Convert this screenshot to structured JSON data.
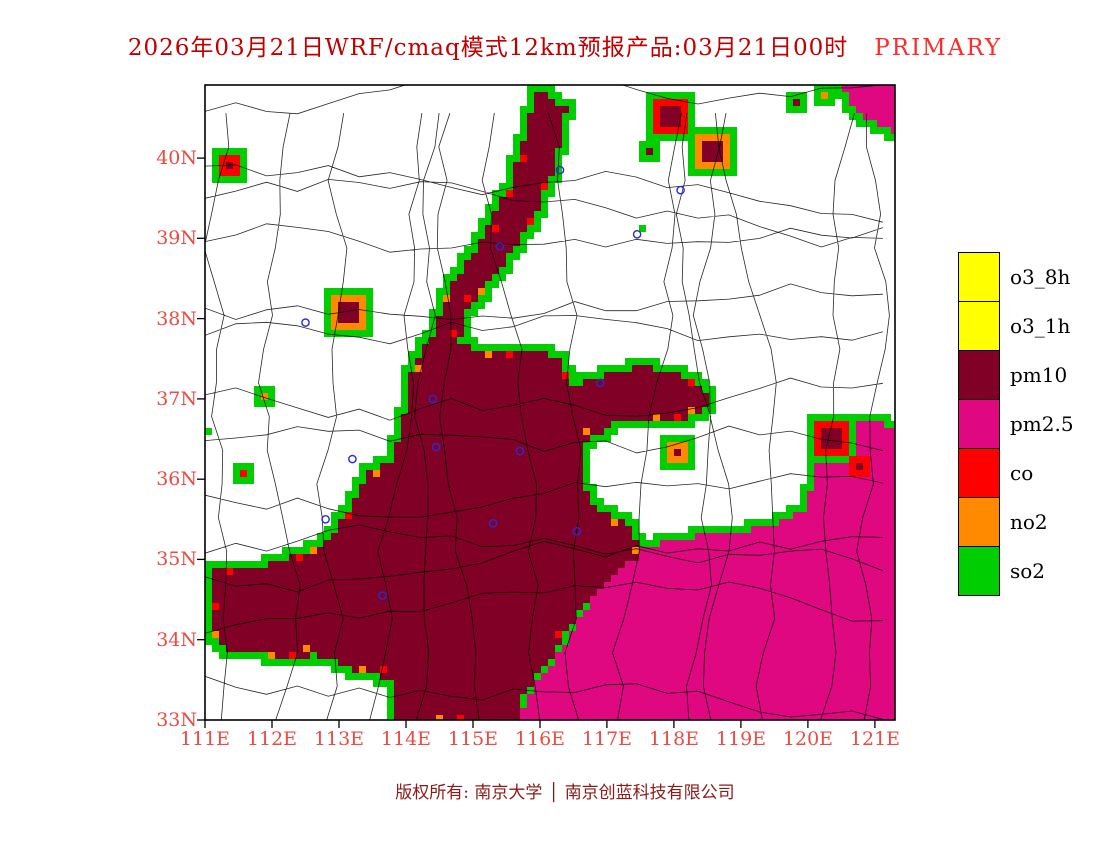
{
  "title": {
    "main": "2026年03月21日WRF/cmaq模式12km预报产品:03月21日00时",
    "highlight": "PRIMARY"
  },
  "footer": {
    "owner": "版权所有: 南京大学",
    "divider": "│",
    "company": "南京创蓝科技有限公司"
  },
  "axes": {
    "lat_labels": [
      "40N",
      "39N",
      "38N",
      "37N",
      "36N",
      "35N",
      "34N",
      "33N"
    ],
    "lon_labels": [
      "111E",
      "112E",
      "113E",
      "114E",
      "115E",
      "116E",
      "117E",
      "118E",
      "119E",
      "120E",
      "121E"
    ]
  },
  "legend": {
    "entries": [
      {
        "label": "o3_8h",
        "color": "#FFFF00"
      },
      {
        "label": "o3_1h",
        "color": "#FFFF00"
      },
      {
        "label": "pm10",
        "color": "#800026"
      },
      {
        "label": "pm2.5",
        "color": "#E00880"
      },
      {
        "label": "co",
        "color": "#FF0000"
      },
      {
        "label": "no2",
        "color": "#FF8A00"
      },
      {
        "label": "so2",
        "color": "#00CE00"
      }
    ]
  },
  "chart_data": {
    "type": "map",
    "title": "2026年03月21日WRF/cmaq模式12km预报产品:03月21日00时 PRIMARY",
    "projection": {
      "lon_range": [
        111,
        121.3
      ],
      "lat_range": [
        33,
        40.91
      ]
    },
    "lon_ticks": [
      111,
      112,
      113,
      114,
      115,
      116,
      117,
      118,
      119,
      120,
      121
    ],
    "lat_ticks": [
      33,
      34,
      35,
      36,
      37,
      38,
      39,
      40
    ],
    "palette": {
      "pm10": "#800026",
      "pm2.5": "#E00880",
      "co": "#FF0000",
      "no2": "#FF8A00",
      "so2": "#00CE00",
      "o3_8h": "#FFFF00",
      "o3_1h": "#FFFF00"
    },
    "marker_color": "#2A2AD4",
    "regions": [
      {
        "pollutant": "pm2.5",
        "name": "southeast-pm25-zone",
        "points": [
          [
            115.65,
            33.0
          ],
          [
            115.85,
            33.35
          ],
          [
            116.3,
            33.85
          ],
          [
            116.7,
            34.4
          ],
          [
            117.1,
            34.85
          ],
          [
            117.55,
            35.15
          ],
          [
            118.2,
            35.28
          ],
          [
            118.9,
            35.33
          ],
          [
            119.5,
            35.45
          ],
          [
            119.95,
            35.6
          ],
          [
            120.1,
            36.1
          ],
          [
            120.35,
            36.55
          ],
          [
            120.8,
            36.75
          ],
          [
            121.3,
            36.65
          ],
          [
            121.3,
            33.0
          ]
        ]
      },
      {
        "pollutant": "pm2.5",
        "name": "northeast-corner-pm25",
        "points": [
          [
            120.55,
            40.91
          ],
          [
            121.3,
            40.91
          ],
          [
            121.3,
            40.3
          ],
          [
            120.95,
            40.45
          ],
          [
            120.6,
            40.7
          ]
        ]
      },
      {
        "pollutant": "pm10",
        "name": "central-pm10-zone",
        "points": [
          [
            116.05,
            40.85
          ],
          [
            116.4,
            40.6
          ],
          [
            116.25,
            40.0
          ],
          [
            115.95,
            39.3
          ],
          [
            115.35,
            38.55
          ],
          [
            114.9,
            38.1
          ],
          [
            114.8,
            37.7
          ],
          [
            115.3,
            37.55
          ],
          [
            115.9,
            37.6
          ],
          [
            116.3,
            37.5
          ],
          [
            116.45,
            37.15
          ],
          [
            116.95,
            37.3
          ],
          [
            117.55,
            37.4
          ],
          [
            118.3,
            37.25
          ],
          [
            118.58,
            36.95
          ],
          [
            118.05,
            36.7
          ],
          [
            117.25,
            36.75
          ],
          [
            116.7,
            36.5
          ],
          [
            116.6,
            36.0
          ],
          [
            116.85,
            35.6
          ],
          [
            117.35,
            35.45
          ],
          [
            117.5,
            35.05
          ],
          [
            117.0,
            34.75
          ],
          [
            116.5,
            34.25
          ],
          [
            116.1,
            33.7
          ],
          [
            115.75,
            33.3
          ],
          [
            115.65,
            33.0
          ],
          [
            113.85,
            33.0
          ],
          [
            113.8,
            33.5
          ],
          [
            113.25,
            33.62
          ],
          [
            112.65,
            33.82
          ],
          [
            112.15,
            33.72
          ],
          [
            111.7,
            33.88
          ],
          [
            111.4,
            33.82
          ],
          [
            111.1,
            34.02
          ],
          [
            111.1,
            34.88
          ],
          [
            111.75,
            34.9
          ],
          [
            112.35,
            35.05
          ],
          [
            112.8,
            35.2
          ],
          [
            113.15,
            35.6
          ],
          [
            113.4,
            36.05
          ],
          [
            113.8,
            36.25
          ],
          [
            114.0,
            36.85
          ],
          [
            114.1,
            37.45
          ],
          [
            114.45,
            37.85
          ],
          [
            114.55,
            38.25
          ],
          [
            115.0,
            38.8
          ],
          [
            115.55,
            39.65
          ],
          [
            115.85,
            40.45
          ],
          [
            115.9,
            40.85
          ]
        ]
      }
    ],
    "blobs": [
      {
        "lon": 111.38,
        "lat": 39.95,
        "layers": [
          [
            "pm10",
            0
          ],
          [
            "co",
            1
          ],
          [
            "so2",
            2
          ]
        ]
      },
      {
        "lon": 113.15,
        "lat": 38.1,
        "layers": [
          [
            "pm10",
            1
          ],
          [
            "no2",
            2
          ],
          [
            "so2",
            3
          ]
        ]
      },
      {
        "lon": 111.9,
        "lat": 37.05,
        "layers": [
          [
            "no2",
            0
          ],
          [
            "so2",
            1
          ]
        ]
      },
      {
        "lon": 111.62,
        "lat": 36.1,
        "layers": [
          [
            "co",
            0
          ],
          [
            "so2",
            1
          ]
        ]
      },
      {
        "lon": 117.9,
        "lat": 40.55,
        "layers": [
          [
            "pm10",
            1
          ],
          [
            "co",
            2
          ],
          [
            "so2",
            3
          ]
        ]
      },
      {
        "lon": 118.55,
        "lat": 40.05,
        "layers": [
          [
            "pm10",
            1
          ],
          [
            "no2",
            2
          ],
          [
            "so2",
            3
          ]
        ]
      },
      {
        "lon": 117.6,
        "lat": 40.1,
        "layers": [
          [
            "pm10",
            0
          ],
          [
            "so2",
            1
          ]
        ]
      },
      {
        "lon": 117.5,
        "lat": 39.1,
        "layers": [
          [
            "so2",
            0
          ]
        ]
      },
      {
        "lon": 119.8,
        "lat": 40.72,
        "layers": [
          [
            "pm10",
            0
          ],
          [
            "so2",
            1
          ]
        ]
      },
      {
        "lon": 120.2,
        "lat": 40.8,
        "layers": [
          [
            "no2",
            0
          ],
          [
            "so2",
            1
          ]
        ]
      },
      {
        "lon": 111.05,
        "lat": 36.6,
        "layers": [
          [
            "so2",
            0
          ]
        ]
      },
      {
        "lon": 118.1,
        "lat": 36.35,
        "layers": [
          [
            "pm10",
            0
          ],
          [
            "no2",
            1
          ],
          [
            "so2",
            2
          ]
        ]
      },
      {
        "lon": 120.33,
        "lat": 36.48,
        "layers": [
          [
            "pm10",
            1
          ],
          [
            "co",
            2
          ],
          [
            "so2",
            3
          ]
        ]
      },
      {
        "lon": 120.75,
        "lat": 36.2,
        "layers": [
          [
            "pm10",
            0
          ],
          [
            "co",
            1
          ]
        ]
      }
    ],
    "city_markers": [
      [
        116.3,
        39.85
      ],
      [
        115.4,
        38.9
      ],
      [
        112.5,
        37.95
      ],
      [
        117.45,
        39.05
      ],
      [
        118.1,
        39.6
      ],
      [
        114.4,
        37.0
      ],
      [
        114.45,
        36.4
      ],
      [
        113.2,
        36.25
      ],
      [
        112.8,
        35.5
      ],
      [
        115.7,
        36.35
      ],
      [
        116.55,
        35.35
      ],
      [
        113.65,
        34.55
      ],
      [
        115.3,
        35.45
      ],
      [
        116.9,
        37.2
      ]
    ]
  }
}
